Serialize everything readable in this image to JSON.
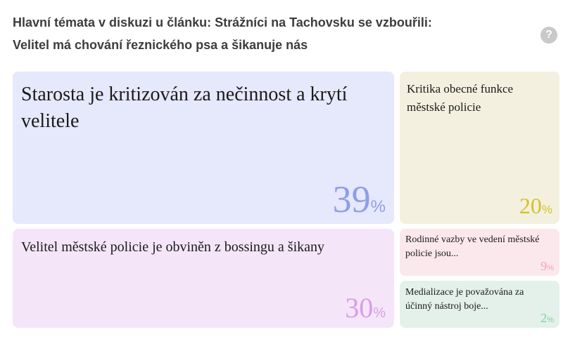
{
  "header": {
    "title_line1": "Hlavní témata v diskuzi u článku: Strážníci na Tachovsku se vzbouřili:",
    "title_line2": "Velitel má chování řeznického psa a šikanuje nás",
    "help_symbol": "?"
  },
  "topics": [
    {
      "label": "Starosta je kritizován za nečinnost a krytí velitele",
      "value": "39",
      "unit": "%",
      "color": "#8f9ee8",
      "background": "#e6e8fb"
    },
    {
      "label": "Kritika obecné funkce městské policie",
      "value": "20",
      "unit": "%",
      "color": "#d2c32a",
      "background": "#f3f0df"
    },
    {
      "label": "Velitel městské policie je obviněn z bossingu a šikany",
      "value": "30",
      "unit": "%",
      "color": "#d89ee6",
      "background": "#f4e6f8"
    },
    {
      "label": "Rodinné vazby ve vedení městské policie jsou...",
      "value": "9",
      "unit": "%",
      "color": "#eea5b6",
      "background": "#fbe8ec"
    },
    {
      "label": "Medializace je považována za účinný nástroj boje...",
      "value": "2",
      "unit": "%",
      "color": "#82cfa4",
      "background": "#e3f1ea"
    }
  ]
}
